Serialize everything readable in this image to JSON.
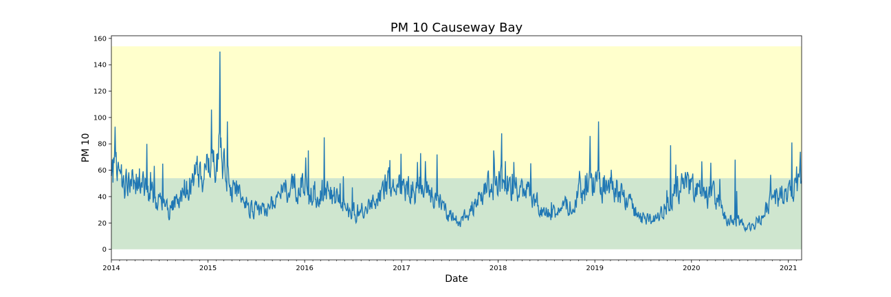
{
  "chart_data": {
    "type": "line",
    "title": "PM 10 Causeway Bay",
    "xlabel": "Date",
    "ylabel": "PM 10",
    "xlim": [
      "2014-01-01",
      "2021-02-20"
    ],
    "ylim": [
      -8,
      162
    ],
    "x_ticks": [
      "2014",
      "2015",
      "2016",
      "2017",
      "2018",
      "2019",
      "2020",
      "2021"
    ],
    "y_ticks": [
      0,
      20,
      40,
      60,
      80,
      100,
      120,
      140,
      160
    ],
    "bands": [
      {
        "from": 0,
        "to": 54,
        "color": "#cfe6cf"
      },
      {
        "from": 54,
        "to": 154,
        "color": "#ffffcc"
      }
    ],
    "grid": false,
    "line_color": "#1f77b4",
    "series": [
      {
        "name": "",
        "x": [
          "2014-01",
          "2014-02",
          "2014-03",
          "2014-04",
          "2014-05",
          "2014-06",
          "2014-07",
          "2014-08",
          "2014-09",
          "2014-10",
          "2014-11",
          "2014-12",
          "2015-01",
          "2015-02",
          "2015-03",
          "2015-04",
          "2015-05",
          "2015-06",
          "2015-07",
          "2015-08",
          "2015-09",
          "2015-10",
          "2015-11",
          "2015-12",
          "2016-01",
          "2016-02",
          "2016-03",
          "2016-04",
          "2016-05",
          "2016-06",
          "2016-07",
          "2016-08",
          "2016-09",
          "2016-10",
          "2016-11",
          "2016-12",
          "2017-01",
          "2017-02",
          "2017-03",
          "2017-04",
          "2017-05",
          "2017-06",
          "2017-07",
          "2017-08",
          "2017-09",
          "2017-10",
          "2017-11",
          "2017-12",
          "2018-01",
          "2018-02",
          "2018-03",
          "2018-04",
          "2018-05",
          "2018-06",
          "2018-07",
          "2018-08",
          "2018-09",
          "2018-10",
          "2018-11",
          "2018-12",
          "2019-01",
          "2019-02",
          "2019-03",
          "2019-04",
          "2019-05",
          "2019-06",
          "2019-07",
          "2019-08",
          "2019-09",
          "2019-10",
          "2019-11",
          "2019-12",
          "2020-01",
          "2020-02",
          "2020-03",
          "2020-04",
          "2020-05",
          "2020-06",
          "2020-07",
          "2020-08",
          "2020-09",
          "2020-10",
          "2020-11",
          "2020-12",
          "2021-01",
          "2021-02"
        ],
        "values": [
          62,
          48,
          55,
          50,
          45,
          38,
          33,
          30,
          40,
          50,
          55,
          58,
          62,
          75,
          55,
          45,
          40,
          30,
          28,
          32,
          38,
          45,
          48,
          52,
          45,
          42,
          45,
          40,
          35,
          30,
          28,
          28,
          35,
          45,
          48,
          50,
          45,
          45,
          50,
          42,
          40,
          30,
          22,
          20,
          30,
          40,
          45,
          50,
          55,
          48,
          48,
          42,
          38,
          28,
          27,
          28,
          32,
          40,
          42,
          48,
          52,
          45,
          50,
          40,
          35,
          25,
          22,
          22,
          28,
          40,
          45,
          48,
          45,
          40,
          42,
          35,
          25,
          20,
          18,
          17,
          22,
          35,
          38,
          45,
          50,
          48
        ]
      }
    ],
    "annotations": [
      {
        "x": "2014-01",
        "y": 93
      },
      {
        "x": "2014-05",
        "y": 80
      },
      {
        "x": "2014-07",
        "y": 65
      },
      {
        "x": "2015-01",
        "y": 106
      },
      {
        "x": "2015-02",
        "y": 150
      },
      {
        "x": "2015-03",
        "y": 97
      },
      {
        "x": "2016-03",
        "y": 85
      },
      {
        "x": "2016-01",
        "y": 75
      },
      {
        "x": "2017-03",
        "y": 73
      },
      {
        "x": "2017-05",
        "y": 72
      },
      {
        "x": "2018-01",
        "y": 88
      },
      {
        "x": "2017-12",
        "y": 75
      },
      {
        "x": "2019-01",
        "y": 97
      },
      {
        "x": "2018-12",
        "y": 86
      },
      {
        "x": "2019-10",
        "y": 79
      },
      {
        "x": "2020-06",
        "y": 68
      },
      {
        "x": "2021-01",
        "y": 81
      },
      {
        "x": "2021-02",
        "y": 74
      }
    ]
  }
}
